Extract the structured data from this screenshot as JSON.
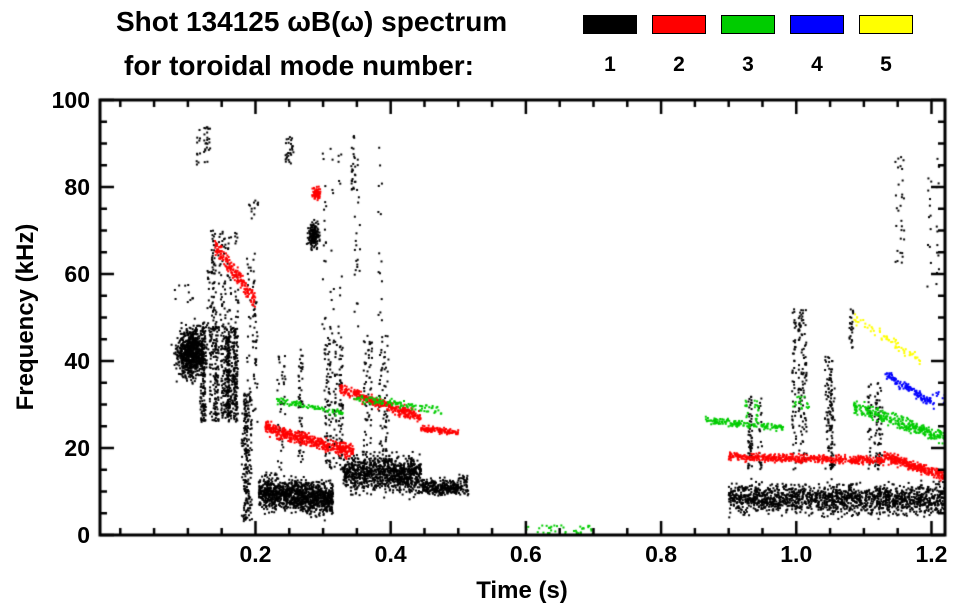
{
  "header": {
    "title_line1": "Shot 134125 ωB(ω) spectrum",
    "title_line2": "for toroidal mode number:"
  },
  "legend": {
    "entries": [
      {
        "label": "1",
        "color": "#000000"
      },
      {
        "label": "2",
        "color": "#ff0000"
      },
      {
        "label": "3",
        "color": "#00cc00"
      },
      {
        "label": "4",
        "color": "#0000ff"
      },
      {
        "label": "5",
        "color": "#ffff00"
      }
    ]
  },
  "chart_data": {
    "type": "scatter",
    "title": "Shot 134125 ωB(ω) spectrum for toroidal mode number",
    "xlabel": "Time (s)",
    "ylabel": "Frequency (kHz)",
    "xlim": [
      -0.03,
      1.22
    ],
    "ylim": [
      0,
      100
    ],
    "x_major_ticks": [
      0.2,
      0.4,
      0.6,
      0.8,
      1.0,
      1.2
    ],
    "x_tick_labels": [
      "0.2",
      "0.4",
      "0.6",
      "0.8",
      "1.0",
      "1.2"
    ],
    "x_minor_step": 0.05,
    "y_major_ticks": [
      0,
      20,
      40,
      60,
      80,
      100
    ],
    "y_tick_labels": [
      "0",
      "20",
      "40",
      "60",
      "80",
      "100"
    ],
    "y_minor_step": 5,
    "grid": false,
    "legend_position": "top-right",
    "series": [
      {
        "name": "n=1",
        "color": "#000000",
        "clusters": [
          {
            "style": "blob",
            "t": [
              0.075,
              0.135
            ],
            "f": [
              34,
              50
            ],
            "n": 800
          },
          {
            "style": "streaks",
            "t": [
              0.115,
              0.185
            ],
            "f": [
              26,
              48
            ],
            "n": 750,
            "k": 14
          },
          {
            "style": "streaks",
            "t": [
              0.125,
              0.19
            ],
            "f": [
              47,
              70
            ],
            "n": 160,
            "k": 8
          },
          {
            "style": "streaks",
            "t": [
              0.16,
              0.2
            ],
            "f": [
              3,
              33
            ],
            "n": 220,
            "k": 6
          },
          {
            "style": "streaks",
            "t": [
              0.19,
              0.21
            ],
            "f": [
              25,
              65
            ],
            "n": 70,
            "k": 3
          },
          {
            "style": "streaks",
            "t": [
              0.115,
              0.14
            ],
            "f": [
              85,
              94
            ],
            "n": 35,
            "k": 3
          },
          {
            "style": "dots",
            "t": [
              0.08,
              0.11
            ],
            "f": [
              53,
              58
            ],
            "n": 10
          },
          {
            "style": "dots",
            "t": [
              0.19,
              0.205
            ],
            "f": [
              70,
              77
            ],
            "n": 12
          },
          {
            "style": "streaks",
            "t": [
              0.245,
              0.26
            ],
            "f": [
              85,
              93
            ],
            "n": 28,
            "k": 2
          },
          {
            "style": "streaks",
            "t": [
              0.33,
              0.345
            ],
            "f": [
              79,
              92
            ],
            "n": 25,
            "k": 2
          },
          {
            "style": "blob",
            "t": [
              0.275,
              0.298
            ],
            "f": [
              65,
              73
            ],
            "n": 160
          },
          {
            "style": "band",
            "t": [
              0.205,
              0.315
            ],
            "f_start": 10,
            "f_end": 8,
            "spread": 5.5,
            "n": 1200
          },
          {
            "style": "streaks",
            "t": [
              0.235,
              0.27
            ],
            "f": [
              15,
              43
            ],
            "n": 90,
            "k": 4
          },
          {
            "style": "streaks",
            "t": [
              0.3,
              0.41
            ],
            "f": [
              15,
              46
            ],
            "n": 320,
            "k": 11
          },
          {
            "style": "band",
            "t": [
              0.33,
              0.445
            ],
            "f_start": 14,
            "f_end": 14,
            "spread": 6,
            "n": 1000
          },
          {
            "style": "streaks",
            "t": [
              0.3,
              0.405
            ],
            "f": [
              45,
              90
            ],
            "n": 80,
            "k": 6
          },
          {
            "style": "band",
            "t": [
              0.445,
              0.5
            ],
            "f_start": 11,
            "f_end": 11,
            "spread": 2.5,
            "n": 280
          },
          {
            "style": "dots",
            "t": [
              0.5,
              0.515
            ],
            "f": [
              9,
              14
            ],
            "n": 50
          },
          {
            "style": "band",
            "t": [
              0.9,
              1.235
            ],
            "f_start": 8.5,
            "f_end": 8,
            "spread": 5,
            "n": 1700
          },
          {
            "style": "streaks",
            "t": [
              0.93,
              0.95
            ],
            "f": [
              15,
              32
            ],
            "n": 80,
            "k": 3
          },
          {
            "style": "streaks",
            "t": [
              0.995,
              1.015
            ],
            "f": [
              15,
              52
            ],
            "n": 160,
            "k": 3
          },
          {
            "style": "streaks",
            "t": [
              1.035,
              1.06
            ],
            "f": [
              15,
              41
            ],
            "n": 120,
            "k": 4
          },
          {
            "style": "streaks",
            "t": [
              1.075,
              1.085
            ],
            "f": [
              43,
              52
            ],
            "n": 25,
            "k": 1
          },
          {
            "style": "streaks",
            "t": [
              1.1,
              1.135
            ],
            "f": [
              15,
              35
            ],
            "n": 90,
            "k": 4
          },
          {
            "style": "streaks",
            "t": [
              1.143,
              1.158
            ],
            "f": [
              62,
              87
            ],
            "n": 30,
            "k": 2
          },
          {
            "style": "streaks",
            "t": [
              1.195,
              1.21
            ],
            "f": [
              55,
              87
            ],
            "n": 25,
            "k": 2
          }
        ]
      },
      {
        "name": "n=2",
        "color": "#ff0000",
        "clusters": [
          {
            "style": "band",
            "t": [
              0.14,
              0.2
            ],
            "f_start": 66,
            "f_end": 54,
            "spread": 3,
            "n": 190
          },
          {
            "style": "blob",
            "t": [
              0.282,
              0.298
            ],
            "f": [
              76.5,
              80.5
            ],
            "n": 90
          },
          {
            "style": "band",
            "t": [
              0.215,
              0.345
            ],
            "f_start": 24.5,
            "f_end": 19,
            "spread": 2.2,
            "n": 480
          },
          {
            "style": "band",
            "t": [
              0.325,
              0.445
            ],
            "f_start": 33.5,
            "f_end": 27,
            "spread": 1.8,
            "n": 340
          },
          {
            "style": "band",
            "t": [
              0.445,
              0.5
            ],
            "f_start": 24.5,
            "f_end": 23.5,
            "spread": 1,
            "n": 120
          },
          {
            "style": "band",
            "t": [
              0.9,
              1.13
            ],
            "f_start": 18,
            "f_end": 17,
            "spread": 1.4,
            "n": 520
          },
          {
            "style": "band",
            "t": [
              1.13,
              1.24
            ],
            "f_start": 18,
            "f_end": 12.5,
            "spread": 1.8,
            "n": 380
          }
        ]
      },
      {
        "name": "n=3",
        "color": "#00cc00",
        "clusters": [
          {
            "style": "band",
            "t": [
              0.23,
              0.33
            ],
            "f_start": 31,
            "f_end": 28,
            "spread": 1.1,
            "n": 90
          },
          {
            "style": "band",
            "t": [
              0.345,
              0.48
            ],
            "f_start": 31.5,
            "f_end": 28.5,
            "spread": 1.3,
            "n": 110
          },
          {
            "style": "dots",
            "t": [
              0.6,
              0.7
            ],
            "f": [
              0.3,
              2.2
            ],
            "n": 40
          },
          {
            "style": "band",
            "t": [
              0.865,
              0.985
            ],
            "f_start": 26.5,
            "f_end": 24.5,
            "spread": 1.2,
            "n": 150
          },
          {
            "style": "streaks",
            "t": [
              0.925,
              0.945
            ],
            "f": [
              26,
              31
            ],
            "n": 25,
            "k": 2
          },
          {
            "style": "dots",
            "t": [
              0.995,
              1.02
            ],
            "f": [
              29,
              32
            ],
            "n": 18
          },
          {
            "style": "band",
            "t": [
              1.085,
              1.235
            ],
            "f_start": 29.5,
            "f_end": 21.5,
            "spread": 2.2,
            "n": 340
          }
        ]
      },
      {
        "name": "n=4",
        "color": "#0000ff",
        "clusters": [
          {
            "style": "band",
            "t": [
              1.13,
              1.2
            ],
            "f_start": 37,
            "f_end": 30.5,
            "spread": 1.5,
            "n": 130
          },
          {
            "style": "dots",
            "t": [
              1.2,
              1.225
            ],
            "f": [
              29,
              33
            ],
            "n": 15
          }
        ]
      },
      {
        "name": "n=5",
        "color": "#ffff00",
        "clusters": [
          {
            "style": "band",
            "t": [
              1.085,
              1.185
            ],
            "f_start": 50,
            "f_end": 40,
            "spread": 2,
            "n": 65
          }
        ]
      }
    ]
  }
}
